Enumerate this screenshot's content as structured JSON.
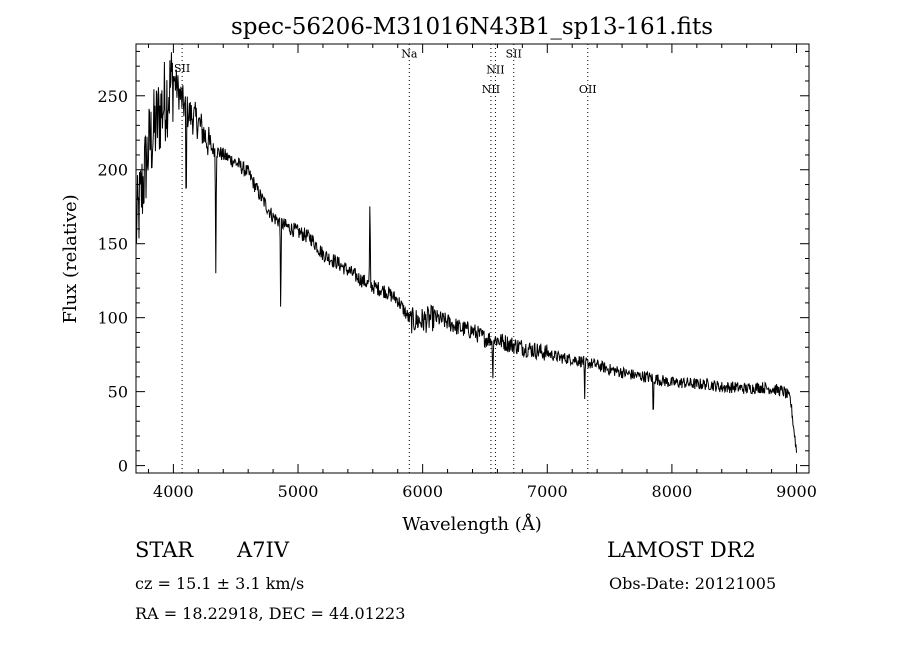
{
  "chart_data": {
    "type": "line",
    "title": "spec-56206-M31016N43B1_sp13-161.fits",
    "xlabel": "Wavelength (Å)",
    "ylabel": "Flux (relative)",
    "xlim": [
      3700,
      9100
    ],
    "ylim": [
      -5,
      285
    ],
    "x_ticks": [
      4000,
      5000,
      6000,
      7000,
      8000,
      9000
    ],
    "y_ticks": [
      0,
      50,
      100,
      150,
      200,
      250
    ],
    "grid": false,
    "line_color": "#000000",
    "spectral_lines": [
      {
        "label": "SII",
        "wavelength": 4070,
        "label_flux": 266
      },
      {
        "label": "Na",
        "wavelength": 5893,
        "label_flux": 276
      },
      {
        "label": "NII",
        "wavelength": 6548,
        "label_flux": 252
      },
      {
        "label": "NII",
        "wavelength": 6584,
        "label_flux": 265
      },
      {
        "label": "OII",
        "wavelength": 7325,
        "label_flux": 252
      },
      {
        "label": "SII",
        "wavelength": 6731,
        "label_flux": 276
      }
    ],
    "continuum": [
      [
        3700,
        160
      ],
      [
        3800,
        215
      ],
      [
        3900,
        240
      ],
      [
        4000,
        262
      ],
      [
        4100,
        240
      ],
      [
        4200,
        232
      ],
      [
        4300,
        215
      ],
      [
        4400,
        210
      ],
      [
        4500,
        205
      ],
      [
        4600,
        198
      ],
      [
        4700,
        182
      ],
      [
        4800,
        168
      ],
      [
        4900,
        162
      ],
      [
        5000,
        158
      ],
      [
        5100,
        154
      ],
      [
        5200,
        143
      ],
      [
        5300,
        138
      ],
      [
        5400,
        132
      ],
      [
        5500,
        126
      ],
      [
        5600,
        121
      ],
      [
        5700,
        118
      ],
      [
        5800,
        112
      ],
      [
        5900,
        98
      ],
      [
        6000,
        98
      ],
      [
        6100,
        100
      ],
      [
        6200,
        97
      ],
      [
        6300,
        93
      ],
      [
        6400,
        91
      ],
      [
        6500,
        86
      ],
      [
        6600,
        85
      ],
      [
        6700,
        82
      ],
      [
        6800,
        80
      ],
      [
        6900,
        78
      ],
      [
        7000,
        76
      ],
      [
        7100,
        73
      ],
      [
        7200,
        72
      ],
      [
        7300,
        70
      ],
      [
        7400,
        68
      ],
      [
        7500,
        65
      ],
      [
        7600,
        63
      ],
      [
        7700,
        61
      ],
      [
        7800,
        60
      ],
      [
        7900,
        58
      ],
      [
        8000,
        56
      ],
      [
        8100,
        56
      ],
      [
        8200,
        55
      ],
      [
        8300,
        55
      ],
      [
        8400,
        53
      ],
      [
        8500,
        53
      ],
      [
        8600,
        52
      ],
      [
        8700,
        53
      ],
      [
        8800,
        52
      ],
      [
        8900,
        50
      ],
      [
        8950,
        45
      ],
      [
        9000,
        10
      ]
    ],
    "features": [
      {
        "wavelength": 4102,
        "flux": 160
      },
      {
        "wavelength": 4340,
        "flux": 130
      },
      {
        "wavelength": 4861,
        "flux": 97
      },
      {
        "wavelength": 5577,
        "flux": 185
      },
      {
        "wavelength": 6563,
        "flux": 55
      },
      {
        "wavelength": 7300,
        "flux": 45
      },
      {
        "wavelength": 7850,
        "flux": 27
      }
    ]
  },
  "info": {
    "object_class": "STAR",
    "subclass": "A7IV",
    "survey": "LAMOST DR2",
    "cz": "cz = 15.1 ± 3.1 km/s",
    "obs_date": "Obs-Date: 20121005",
    "ra_dec": "RA =  18.22918, DEC =  44.01223"
  }
}
